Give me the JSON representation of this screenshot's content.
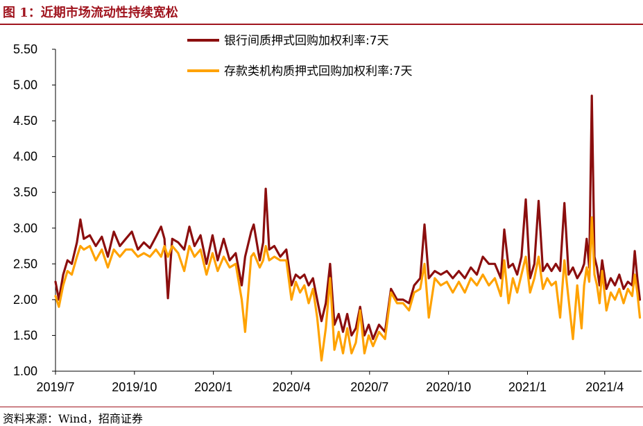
{
  "figure": {
    "title": "图 1：近期市场流动性持续宽松",
    "source": "资料来源：Wind，招商证券"
  },
  "chart_data": {
    "type": "line",
    "ylim": [
      1.0,
      5.5
    ],
    "yticks": [
      "1.00",
      "1.50",
      "2.00",
      "2.50",
      "3.00",
      "3.50",
      "4.00",
      "4.50",
      "5.00",
      "5.50"
    ],
    "xlim": [
      "2019-07-01",
      "2021-05-14"
    ],
    "xticks": [
      {
        "label": "2019/7",
        "date": "2019-07-01"
      },
      {
        "label": "2019/10",
        "date": "2019-10-01"
      },
      {
        "label": "2020/1",
        "date": "2020-01-01"
      },
      {
        "label": "2020/4",
        "date": "2020-04-01"
      },
      {
        "label": "2020/7",
        "date": "2020-07-01"
      },
      {
        "label": "2020/10",
        "date": "2020-10-01"
      },
      {
        "label": "2021/1",
        "date": "2021-01-01"
      },
      {
        "label": "2021/4",
        "date": "2021-04-01"
      }
    ],
    "legend_position": "top-center",
    "grid": false,
    "series": [
      {
        "name": "银行间质押式回购加权利率:7天",
        "color": "#8b0e0e",
        "points": [
          [
            "2019-07-01",
            2.25
          ],
          [
            "2019-07-05",
            2.0
          ],
          [
            "2019-07-10",
            2.35
          ],
          [
            "2019-07-15",
            2.55
          ],
          [
            "2019-07-20",
            2.5
          ],
          [
            "2019-07-26",
            2.8
          ],
          [
            "2019-07-30",
            3.12
          ],
          [
            "2019-08-03",
            2.85
          ],
          [
            "2019-08-10",
            2.9
          ],
          [
            "2019-08-17",
            2.75
          ],
          [
            "2019-08-24",
            2.88
          ],
          [
            "2019-08-31",
            2.6
          ],
          [
            "2019-09-07",
            2.95
          ],
          [
            "2019-09-14",
            2.75
          ],
          [
            "2019-09-21",
            2.85
          ],
          [
            "2019-09-28",
            2.95
          ],
          [
            "2019-10-05",
            2.7
          ],
          [
            "2019-10-12",
            2.8
          ],
          [
            "2019-10-19",
            2.72
          ],
          [
            "2019-10-26",
            2.88
          ],
          [
            "2019-11-01",
            3.02
          ],
          [
            "2019-11-05",
            2.85
          ],
          [
            "2019-11-09",
            2.02
          ],
          [
            "2019-11-14",
            2.85
          ],
          [
            "2019-11-21",
            2.8
          ],
          [
            "2019-11-28",
            2.7
          ],
          [
            "2019-12-04",
            3.02
          ],
          [
            "2019-12-10",
            2.75
          ],
          [
            "2019-12-17",
            2.9
          ],
          [
            "2019-12-24",
            2.5
          ],
          [
            "2019-12-31",
            2.9
          ],
          [
            "2020-01-06",
            2.55
          ],
          [
            "2020-01-13",
            2.85
          ],
          [
            "2020-01-20",
            2.55
          ],
          [
            "2020-01-27",
            2.65
          ],
          [
            "2020-02-03",
            2.2
          ],
          [
            "2020-02-07",
            2.6
          ],
          [
            "2020-02-14",
            2.95
          ],
          [
            "2020-02-17",
            3.05
          ],
          [
            "2020-02-24",
            2.55
          ],
          [
            "2020-02-28",
            2.8
          ],
          [
            "2020-03-02",
            3.55
          ],
          [
            "2020-03-06",
            2.7
          ],
          [
            "2020-03-12",
            2.75
          ],
          [
            "2020-03-19",
            2.6
          ],
          [
            "2020-03-26",
            2.7
          ],
          [
            "2020-04-01",
            2.2
          ],
          [
            "2020-04-06",
            2.35
          ],
          [
            "2020-04-11",
            2.3
          ],
          [
            "2020-04-16",
            2.35
          ],
          [
            "2020-04-21",
            2.2
          ],
          [
            "2020-04-26",
            2.3
          ],
          [
            "2020-05-01",
            2.0
          ],
          [
            "2020-05-06",
            1.7
          ],
          [
            "2020-05-11",
            1.95
          ],
          [
            "2020-05-16",
            2.5
          ],
          [
            "2020-05-21",
            1.65
          ],
          [
            "2020-05-26",
            1.8
          ],
          [
            "2020-05-31",
            1.55
          ],
          [
            "2020-06-05",
            1.8
          ],
          [
            "2020-06-10",
            1.5
          ],
          [
            "2020-06-15",
            1.6
          ],
          [
            "2020-06-20",
            1.9
          ],
          [
            "2020-06-25",
            1.5
          ],
          [
            "2020-06-30",
            1.65
          ],
          [
            "2020-07-05",
            1.45
          ],
          [
            "2020-07-12",
            1.65
          ],
          [
            "2020-07-19",
            1.55
          ],
          [
            "2020-07-26",
            2.15
          ],
          [
            "2020-08-02",
            2.0
          ],
          [
            "2020-08-09",
            2.0
          ],
          [
            "2020-08-16",
            1.95
          ],
          [
            "2020-08-22",
            2.2
          ],
          [
            "2020-08-29",
            2.3
          ],
          [
            "2020-09-03",
            3.05
          ],
          [
            "2020-09-08",
            2.3
          ],
          [
            "2020-09-15",
            2.4
          ],
          [
            "2020-09-22",
            2.35
          ],
          [
            "2020-09-29",
            2.4
          ],
          [
            "2020-10-06",
            2.3
          ],
          [
            "2020-10-13",
            2.4
          ],
          [
            "2020-10-20",
            2.3
          ],
          [
            "2020-10-27",
            2.45
          ],
          [
            "2020-11-03",
            2.35
          ],
          [
            "2020-11-10",
            2.6
          ],
          [
            "2020-11-17",
            2.5
          ],
          [
            "2020-11-24",
            2.5
          ],
          [
            "2020-12-01",
            2.3
          ],
          [
            "2020-12-05",
            2.98
          ],
          [
            "2020-12-10",
            2.45
          ],
          [
            "2020-12-15",
            2.5
          ],
          [
            "2020-12-20",
            2.35
          ],
          [
            "2020-12-25",
            2.6
          ],
          [
            "2020-12-30",
            3.4
          ],
          [
            "2021-01-04",
            2.3
          ],
          [
            "2021-01-09",
            2.5
          ],
          [
            "2021-01-14",
            3.38
          ],
          [
            "2021-01-19",
            2.4
          ],
          [
            "2021-01-24",
            2.5
          ],
          [
            "2021-01-29",
            2.4
          ],
          [
            "2021-02-03",
            2.5
          ],
          [
            "2021-02-08",
            2.4
          ],
          [
            "2021-02-13",
            3.35
          ],
          [
            "2021-02-18",
            2.35
          ],
          [
            "2021-02-23",
            2.45
          ],
          [
            "2021-02-28",
            2.3
          ],
          [
            "2021-03-05",
            2.4
          ],
          [
            "2021-03-08",
            2.5
          ],
          [
            "2021-03-11",
            2.85
          ],
          [
            "2021-03-14",
            2.45
          ],
          [
            "2021-03-17",
            4.85
          ],
          [
            "2021-03-20",
            2.6
          ],
          [
            "2021-03-23",
            2.45
          ],
          [
            "2021-03-26",
            2.2
          ],
          [
            "2021-03-29",
            2.55
          ],
          [
            "2021-04-03",
            2.15
          ],
          [
            "2021-04-08",
            2.3
          ],
          [
            "2021-04-13",
            2.2
          ],
          [
            "2021-04-18",
            2.35
          ],
          [
            "2021-04-23",
            2.15
          ],
          [
            "2021-04-28",
            2.25
          ],
          [
            "2021-05-03",
            2.2
          ],
          [
            "2021-05-06",
            2.68
          ],
          [
            "2021-05-09",
            2.3
          ],
          [
            "2021-05-12",
            2.0
          ]
        ]
      },
      {
        "name": "存款类机构质押式回购加权利率:7天",
        "color": "#ffa200",
        "points": [
          [
            "2019-07-01",
            2.05
          ],
          [
            "2019-07-05",
            1.9
          ],
          [
            "2019-07-10",
            2.2
          ],
          [
            "2019-07-15",
            2.4
          ],
          [
            "2019-07-20",
            2.35
          ],
          [
            "2019-07-26",
            2.6
          ],
          [
            "2019-07-30",
            2.75
          ],
          [
            "2019-08-03",
            2.7
          ],
          [
            "2019-08-10",
            2.75
          ],
          [
            "2019-08-17",
            2.55
          ],
          [
            "2019-08-24",
            2.7
          ],
          [
            "2019-08-31",
            2.45
          ],
          [
            "2019-09-07",
            2.7
          ],
          [
            "2019-09-14",
            2.6
          ],
          [
            "2019-09-21",
            2.7
          ],
          [
            "2019-09-28",
            2.7
          ],
          [
            "2019-10-05",
            2.6
          ],
          [
            "2019-10-12",
            2.65
          ],
          [
            "2019-10-19",
            2.6
          ],
          [
            "2019-10-26",
            2.7
          ],
          [
            "2019-11-01",
            2.6
          ],
          [
            "2019-11-05",
            2.75
          ],
          [
            "2019-11-09",
            2.6
          ],
          [
            "2019-11-14",
            2.75
          ],
          [
            "2019-11-21",
            2.65
          ],
          [
            "2019-11-28",
            2.4
          ],
          [
            "2019-12-04",
            2.75
          ],
          [
            "2019-12-10",
            2.6
          ],
          [
            "2019-12-17",
            2.7
          ],
          [
            "2019-12-24",
            2.35
          ],
          [
            "2019-12-31",
            2.65
          ],
          [
            "2020-01-06",
            2.4
          ],
          [
            "2020-01-13",
            2.6
          ],
          [
            "2020-01-20",
            2.45
          ],
          [
            "2020-01-27",
            2.5
          ],
          [
            "2020-02-03",
            2.0
          ],
          [
            "2020-02-07",
            1.55
          ],
          [
            "2020-02-14",
            2.6
          ],
          [
            "2020-02-17",
            2.65
          ],
          [
            "2020-02-24",
            2.45
          ],
          [
            "2020-02-28",
            2.55
          ],
          [
            "2020-03-02",
            2.75
          ],
          [
            "2020-03-06",
            2.55
          ],
          [
            "2020-03-12",
            2.6
          ],
          [
            "2020-03-19",
            2.55
          ],
          [
            "2020-03-26",
            2.55
          ],
          [
            "2020-04-01",
            2.0
          ],
          [
            "2020-04-06",
            2.25
          ],
          [
            "2020-04-11",
            2.1
          ],
          [
            "2020-04-16",
            2.2
          ],
          [
            "2020-04-21",
            1.95
          ],
          [
            "2020-04-26",
            2.15
          ],
          [
            "2020-05-01",
            1.75
          ],
          [
            "2020-05-06",
            1.15
          ],
          [
            "2020-05-11",
            1.6
          ],
          [
            "2020-05-16",
            2.3
          ],
          [
            "2020-05-21",
            1.3
          ],
          [
            "2020-05-26",
            1.55
          ],
          [
            "2020-05-31",
            1.25
          ],
          [
            "2020-06-05",
            1.6
          ],
          [
            "2020-06-10",
            1.25
          ],
          [
            "2020-06-15",
            1.4
          ],
          [
            "2020-06-20",
            1.85
          ],
          [
            "2020-06-25",
            1.25
          ],
          [
            "2020-06-30",
            1.5
          ],
          [
            "2020-07-05",
            1.35
          ],
          [
            "2020-07-12",
            1.55
          ],
          [
            "2020-07-19",
            1.45
          ],
          [
            "2020-07-26",
            2.1
          ],
          [
            "2020-08-02",
            1.95
          ],
          [
            "2020-08-09",
            1.95
          ],
          [
            "2020-08-16",
            1.85
          ],
          [
            "2020-08-22",
            2.1
          ],
          [
            "2020-08-29",
            2.15
          ],
          [
            "2020-09-03",
            2.5
          ],
          [
            "2020-09-08",
            1.75
          ],
          [
            "2020-09-15",
            2.3
          ],
          [
            "2020-09-22",
            2.2
          ],
          [
            "2020-09-29",
            2.25
          ],
          [
            "2020-10-06",
            2.1
          ],
          [
            "2020-10-13",
            2.25
          ],
          [
            "2020-10-20",
            2.1
          ],
          [
            "2020-10-27",
            2.3
          ],
          [
            "2020-11-03",
            2.2
          ],
          [
            "2020-11-10",
            2.35
          ],
          [
            "2020-11-17",
            2.2
          ],
          [
            "2020-11-24",
            2.3
          ],
          [
            "2020-12-01",
            2.05
          ],
          [
            "2020-12-05",
            2.55
          ],
          [
            "2020-12-10",
            1.95
          ],
          [
            "2020-12-15",
            2.3
          ],
          [
            "2020-12-20",
            2.1
          ],
          [
            "2020-12-25",
            2.35
          ],
          [
            "2020-12-30",
            2.6
          ],
          [
            "2021-01-04",
            2.1
          ],
          [
            "2021-01-09",
            2.3
          ],
          [
            "2021-01-14",
            2.6
          ],
          [
            "2021-01-19",
            2.15
          ],
          [
            "2021-01-24",
            2.3
          ],
          [
            "2021-01-29",
            2.2
          ],
          [
            "2021-02-03",
            2.25
          ],
          [
            "2021-02-08",
            1.75
          ],
          [
            "2021-02-13",
            2.55
          ],
          [
            "2021-02-18",
            2.0
          ],
          [
            "2021-02-23",
            1.45
          ],
          [
            "2021-02-28",
            2.2
          ],
          [
            "2021-03-05",
            1.6
          ],
          [
            "2021-03-08",
            2.2
          ],
          [
            "2021-03-11",
            2.45
          ],
          [
            "2021-03-14",
            2.25
          ],
          [
            "2021-03-17",
            3.15
          ],
          [
            "2021-03-20",
            2.35
          ],
          [
            "2021-03-23",
            2.2
          ],
          [
            "2021-03-26",
            1.95
          ],
          [
            "2021-03-29",
            2.4
          ],
          [
            "2021-04-03",
            1.85
          ],
          [
            "2021-04-08",
            2.1
          ],
          [
            "2021-04-13",
            2.0
          ],
          [
            "2021-04-18",
            2.15
          ],
          [
            "2021-04-23",
            1.95
          ],
          [
            "2021-04-28",
            2.15
          ],
          [
            "2021-05-03",
            2.05
          ],
          [
            "2021-05-06",
            2.35
          ],
          [
            "2021-05-09",
            2.1
          ],
          [
            "2021-05-12",
            1.75
          ]
        ]
      }
    ]
  }
}
